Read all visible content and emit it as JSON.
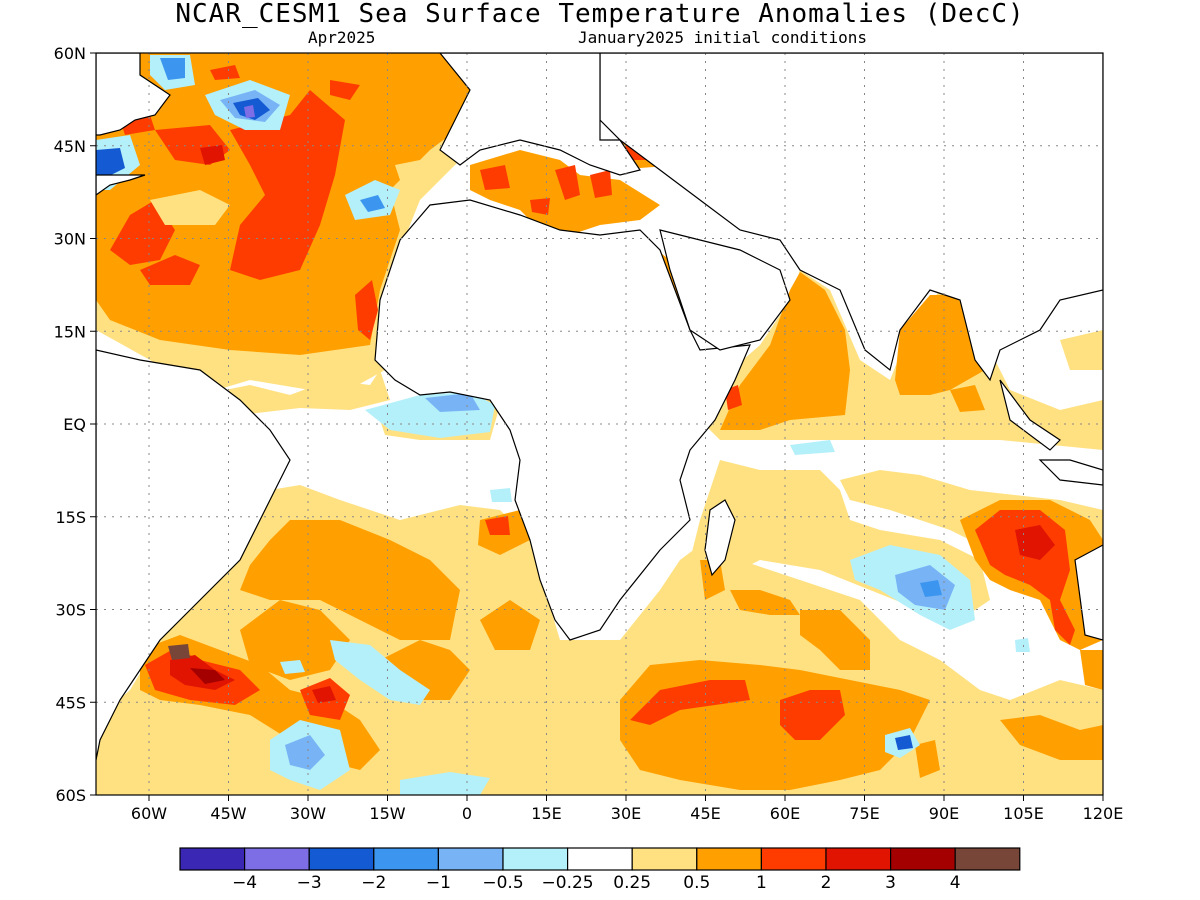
{
  "title": "NCAR_CESM1 Sea Surface Temperature Anomalies (DecC)",
  "subtitle_left": "Apr2025",
  "subtitle_right": "January2025 initial conditions",
  "y_ticks": [
    "60N",
    "45N",
    "30N",
    "15N",
    "EQ",
    "15S",
    "30S",
    "45S",
    "60S"
  ],
  "x_ticks": [
    "60W",
    "45W",
    "30W",
    "15W",
    "0",
    "15E",
    "30E",
    "45E",
    "60E",
    "75E",
    "90E",
    "105E",
    "120E"
  ],
  "legend": {
    "colors": [
      "#3a28b4",
      "#7d6ee6",
      "#145ad2",
      "#3c96f0",
      "#78b4f5",
      "#b4f0fa",
      "#ffffff",
      "#ffe182",
      "#ffa000",
      "#ff3c00",
      "#e01400",
      "#a50000",
      "#784638"
    ],
    "labels": [
      "−4",
      "−3",
      "−2",
      "−1",
      "−0.5",
      "−0.25",
      "0.25",
      "0.5",
      "1",
      "2",
      "3",
      "4"
    ]
  },
  "palette": {
    "pale_yellow": "#ffe182",
    "orange": "#ffa000",
    "red": "#ff3c00",
    "dark_red": "#e01400",
    "deep_red": "#a50000",
    "brown": "#784638",
    "pale_cyan": "#b4f0fa",
    "light_blue": "#78b4f5",
    "blue": "#3c96f0",
    "mid_blue": "#145ad2",
    "violet": "#7d6ee6"
  }
}
